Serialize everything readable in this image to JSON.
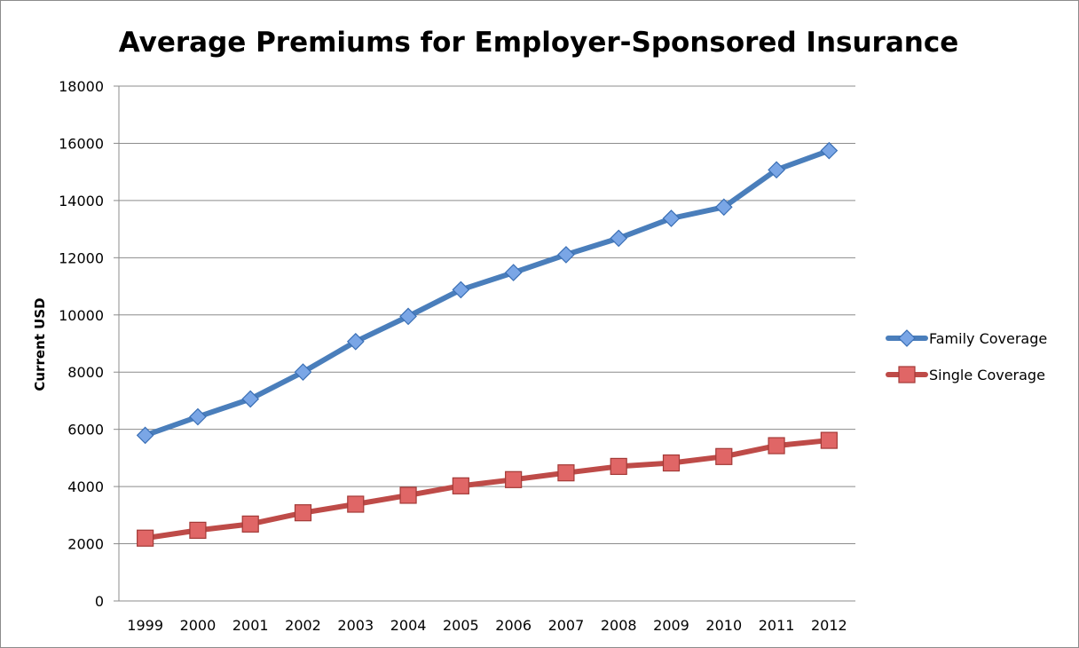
{
  "chart_data": {
    "type": "line",
    "title": "Average Premiums for Employer-Sponsored Insurance",
    "xlabel": "",
    "ylabel": "Current USD",
    "ylim": [
      0,
      18000
    ],
    "yticks": [
      "0",
      "2000",
      "4000",
      "6000",
      "8000",
      "10000",
      "12000",
      "14000",
      "16000",
      "18000"
    ],
    "categories": [
      "1999",
      "2000",
      "2001",
      "2002",
      "2003",
      "2004",
      "2005",
      "2006",
      "2007",
      "2008",
      "2009",
      "2010",
      "2011",
      "2012"
    ],
    "grid": "horizontal",
    "legend_position": "right",
    "series": [
      {
        "name": "Family Coverage",
        "color": "#4a7ebb",
        "marker": "diamond",
        "values": [
          5791,
          6438,
          7061,
          8003,
          9068,
          9950,
          10880,
          11480,
          12106,
          12680,
          13375,
          13770,
          15073,
          15745
        ]
      },
      {
        "name": "Single Coverage",
        "color": "#be4b48",
        "marker": "square",
        "values": [
          2196,
          2471,
          2689,
          3083,
          3383,
          3695,
          4024,
          4242,
          4479,
          4704,
          4824,
          5049,
          5429,
          5615
        ]
      }
    ]
  }
}
